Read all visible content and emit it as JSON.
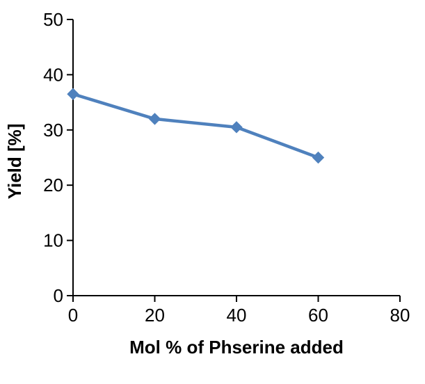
{
  "chart_data": {
    "type": "line",
    "title": "",
    "xlabel": "Mol % of Phserine added",
    "ylabel": "Yield [%]",
    "x": [
      0,
      20,
      40,
      60
    ],
    "series": [
      {
        "name": "Yield",
        "values": [
          36.5,
          32,
          30.5,
          25
        ]
      }
    ],
    "xlim": [
      0,
      80
    ],
    "ylim": [
      0,
      50
    ],
    "x_ticks": [
      0,
      20,
      40,
      60,
      80
    ],
    "y_ticks": [
      0,
      10,
      20,
      30,
      40,
      50
    ],
    "grid": false,
    "legend": false,
    "marker": "diamond",
    "colors": {
      "line": "#4F81BD",
      "marker": "#4F81BD",
      "axis": "#000000",
      "text": "#000000",
      "background": "#FFFFFF"
    }
  }
}
